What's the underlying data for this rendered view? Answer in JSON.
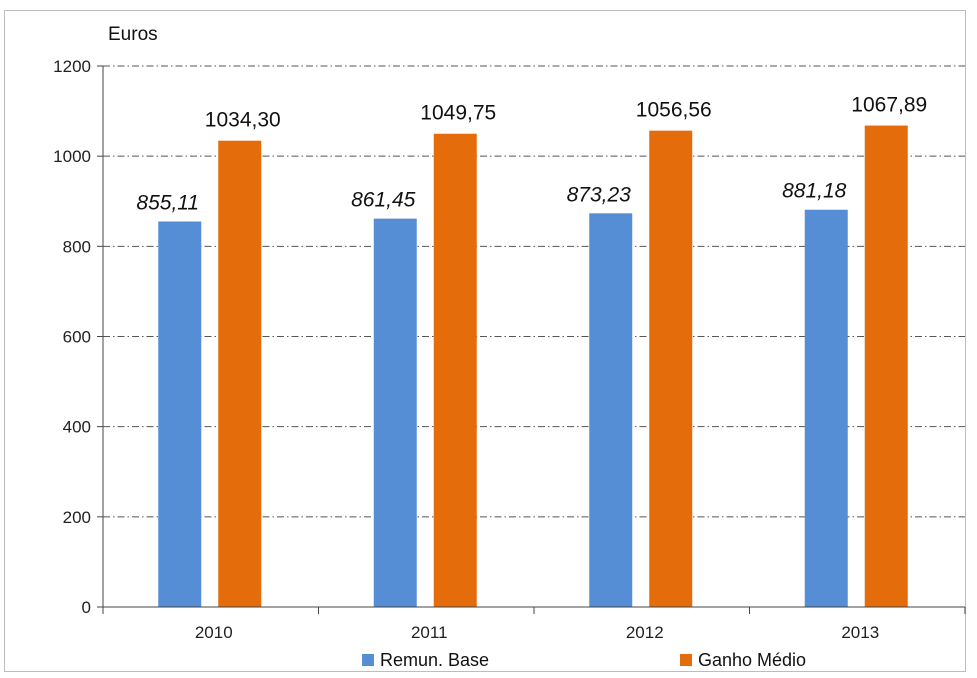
{
  "chart_data": {
    "type": "bar",
    "ylabel": "Euros",
    "categories": [
      "2010",
      "2011",
      "2012",
      "2013"
    ],
    "ylim": [
      0,
      1200
    ],
    "yticks": [
      0,
      200,
      400,
      600,
      800,
      1000,
      1200
    ],
    "grid": true,
    "legend_position": "bottom",
    "series": [
      {
        "name": "Remun. Base",
        "color": "#558ed5",
        "values": [
          855.11,
          861.45,
          873.23,
          881.18
        ],
        "labels": [
          "855,11",
          "861,45",
          "873,23",
          "881,18"
        ]
      },
      {
        "name": "Ganho Médio",
        "color": "#e46c0a",
        "values": [
          1034.3,
          1049.75,
          1056.56,
          1067.89
        ],
        "labels": [
          "1034,30",
          "1049,75",
          "1056,56",
          "1067,89"
        ]
      }
    ]
  }
}
